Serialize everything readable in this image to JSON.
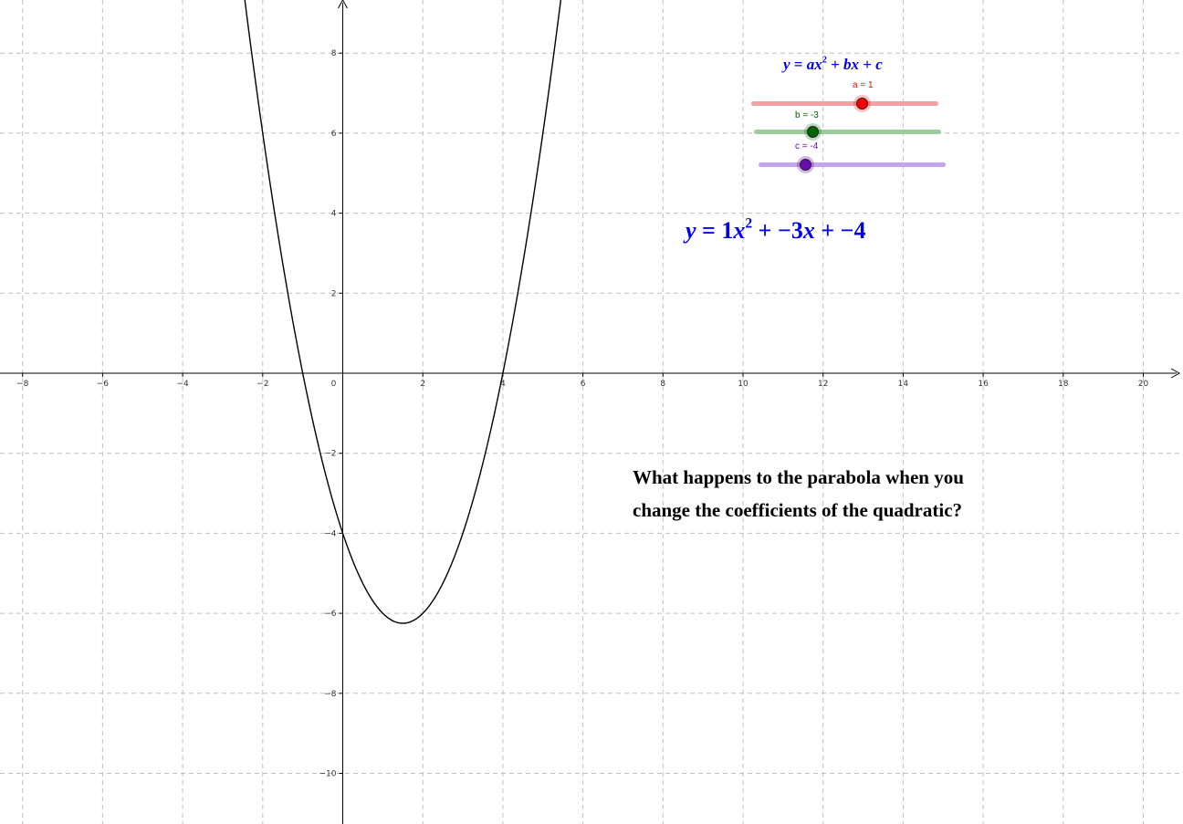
{
  "graph": {
    "x_ticks": [
      "−8",
      "−6",
      "−4",
      "−2",
      "0",
      "2",
      "4",
      "6",
      "8",
      "10",
      "12",
      "14",
      "16",
      "18",
      "20"
    ],
    "y_ticks": [
      "8",
      "6",
      "4",
      "2",
      "−2",
      "−4",
      "−6",
      "−8",
      "−10"
    ],
    "x_tick_values": [
      -8,
      -6,
      -4,
      -2,
      0,
      2,
      4,
      6,
      8,
      10,
      12,
      14,
      16,
      18,
      20
    ],
    "y_tick_values": [
      8,
      6,
      4,
      2,
      -2,
      -4,
      -6,
      -8,
      -10
    ],
    "grid": true,
    "grid_style": "dashed",
    "grid_color": "#c0c0c0",
    "axis_color": "#000000",
    "curve_color": "#000000",
    "xlim": [
      -8.6,
      20.9
    ],
    "ylim": [
      -11.2,
      9.3
    ]
  },
  "function": {
    "a": 1,
    "b": -3,
    "c": -4
  },
  "formula": {
    "general": {
      "y": "y",
      "eq": " = ",
      "a": "a",
      "x": "x",
      "sq": "2",
      "plus1": " + ",
      "b": "b",
      "x2": "x",
      "plus2": " + ",
      "c": "c"
    },
    "current": {
      "y": "y",
      "eq": " = ",
      "a": "1",
      "x": "x",
      "sq": "2",
      "plus1": " + ",
      "b": "−3",
      "x2": "x",
      "plus2": " + ",
      "c": "−4"
    },
    "color": "#0000ee"
  },
  "sliders": {
    "a": {
      "label": "a = 1",
      "color": "#ff0000",
      "track_color": "#f4a0a0",
      "level": 0.6
    },
    "b": {
      "label": "b = -3",
      "color": "#006400",
      "track_color": "#9ccc9c",
      "level": 0.3
    },
    "c": {
      "label": "c = -4",
      "color": "#6a0dad",
      "track_color": "#c7a3ee",
      "level": 0.25
    }
  },
  "question": {
    "line1": "What happens to the parabola when you",
    "line2": "change the coefficients of the quadratic?"
  }
}
